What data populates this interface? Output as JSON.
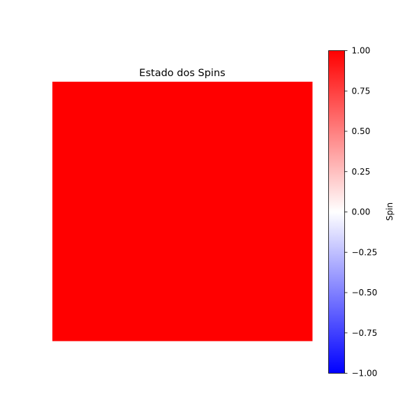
{
  "chart_data": {
    "type": "heatmap",
    "title": "Estado dos Spins",
    "colorscale": "bwr",
    "colors": {
      "min": "#0000ff",
      "mid": "#ffffff",
      "max": "#ff0000"
    },
    "values": [
      [
        1
      ]
    ],
    "colorbar": {
      "label": "Spin",
      "range": [
        -1,
        1
      ],
      "ticks": [
        -1.0,
        -0.75,
        -0.5,
        -0.25,
        0.0,
        0.25,
        0.5,
        0.75,
        1.0
      ],
      "tick_labels": [
        "−1.00",
        "−0.75",
        "−0.50",
        "−0.25",
        "0.00",
        "0.25",
        "0.50",
        "0.75",
        "1.00"
      ],
      "placement": "right"
    },
    "axes_visible": false
  }
}
